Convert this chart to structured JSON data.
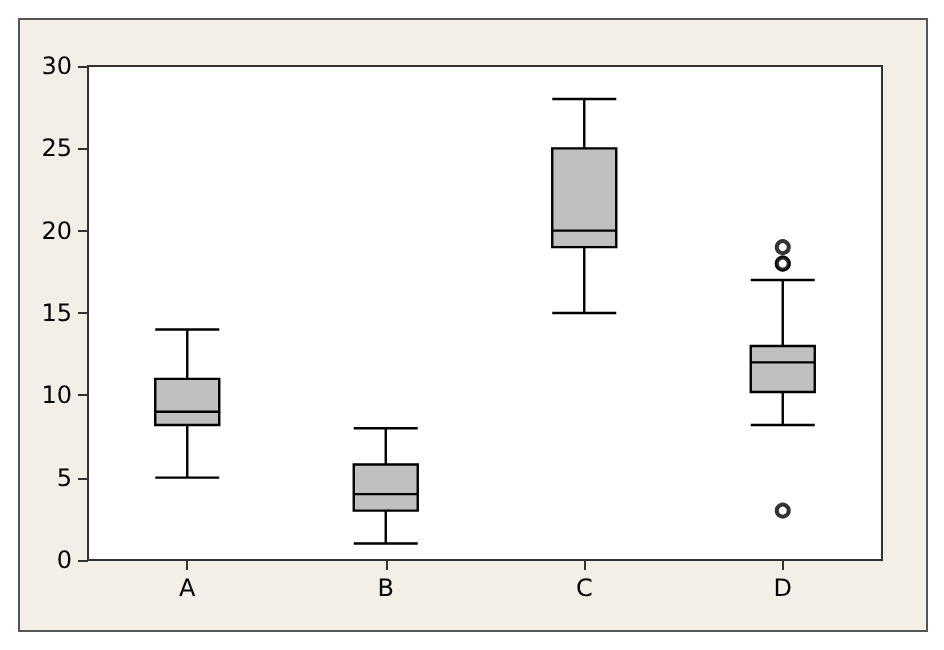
{
  "chart_data": {
    "type": "box",
    "categories": [
      "A",
      "B",
      "C",
      "D"
    ],
    "boxes": [
      {
        "low": 5,
        "q1": 8.2,
        "median": 9,
        "q3": 11,
        "high": 14
      },
      {
        "low": 1,
        "q1": 3,
        "median": 4,
        "q3": 5.8,
        "high": 8
      },
      {
        "low": 15,
        "q1": 19,
        "median": 20,
        "q3": 25,
        "high": 28
      },
      {
        "low": 8.2,
        "q1": 10.2,
        "median": 12,
        "q3": 13,
        "high": 17,
        "outliers": [
          19,
          18,
          18,
          3
        ]
      }
    ],
    "color": "#c0c0c0",
    "ylim": [
      0,
      30
    ],
    "yticks": [
      0,
      5,
      10,
      15,
      20,
      25,
      30
    ],
    "grid": false
  }
}
